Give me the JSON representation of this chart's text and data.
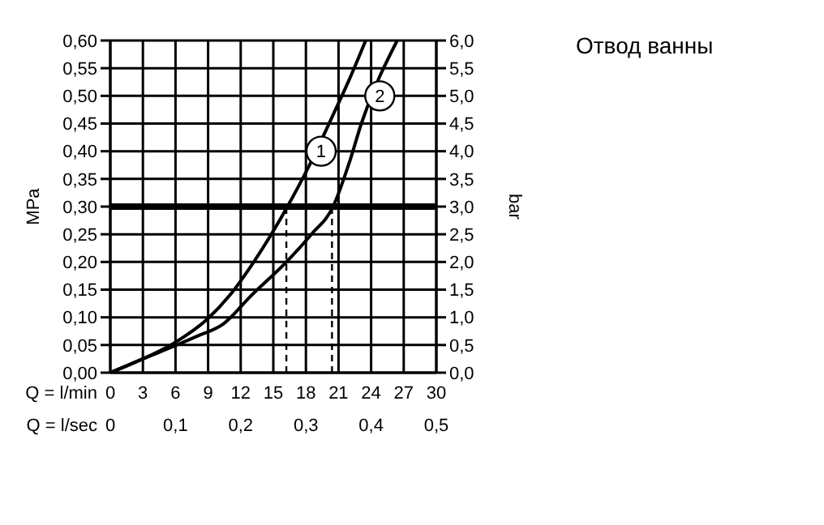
{
  "chart_data": {
    "type": "line",
    "title": "Отвод ванны",
    "xlabel": "Q = l/min",
    "x2label": "Q = l/sec",
    "ylabel": "MPa",
    "y2label": "bar",
    "series": [
      {
        "color": "#000000",
        "x": [
          0,
          3,
          6,
          9,
          11,
          13.2,
          16.3,
          18.2,
          20.6,
          22,
          23.5
        ],
        "values": [
          0,
          0.025,
          0.055,
          0.098,
          0.14,
          0.2,
          0.3,
          0.37,
          0.47,
          0.53,
          0.6
        ]
      },
      {
        "color": "#000000",
        "x": [
          0,
          3,
          6,
          8,
          10.4,
          13,
          16.2,
          18.5,
          20.5,
          22,
          23.1,
          26.4
        ],
        "values": [
          0,
          0.025,
          0.049,
          0.066,
          0.088,
          0.14,
          0.2,
          0.25,
          0.3,
          0.38,
          0.45,
          0.6
        ]
      }
    ],
    "xlim": [
      0,
      30
    ],
    "xticks": [
      0,
      3,
      6,
      9,
      12,
      15,
      18,
      21,
      24,
      27,
      30
    ],
    "x2lim": [
      0,
      0.5
    ],
    "x2ticks": [
      0,
      {
        "value": 0.1,
        "label": "0,1"
      },
      {
        "value": 0.2,
        "label": "0,2"
      },
      {
        "value": 0.3,
        "label": "0,3"
      },
      {
        "value": 0.4,
        "label": "0,4"
      },
      {
        "value": 0.5,
        "label": "0,5"
      }
    ],
    "ylim": [
      0,
      0.6
    ],
    "yticks": [
      {
        "value": 0,
        "label": "0,00"
      },
      {
        "value": 0.05,
        "label": "0,05"
      },
      {
        "value": 0.1,
        "label": "0,10"
      },
      {
        "value": 0.15,
        "label": "0,15"
      },
      {
        "value": 0.2,
        "label": "0,20"
      },
      {
        "value": 0.25,
        "label": "0,25"
      },
      {
        "value": 0.3,
        "label": "0,30"
      },
      {
        "value": 0.35,
        "label": "0,35"
      },
      {
        "value": 0.4,
        "label": "0,40"
      },
      {
        "value": 0.45,
        "label": "0,45"
      },
      {
        "value": 0.5,
        "label": "0,50"
      },
      {
        "value": 0.55,
        "label": "0,55"
      },
      {
        "value": 0.6,
        "label": "0,60"
      }
    ],
    "y2lim": [
      0,
      6
    ],
    "y2ticks": [
      {
        "value": 0,
        "label": "0,0"
      },
      {
        "value": 0.5,
        "label": "0,5"
      },
      {
        "value": 1,
        "label": "1,0"
      },
      {
        "value": 1.5,
        "label": "1,5"
      },
      {
        "value": 2,
        "label": "2,0"
      },
      {
        "value": 2.5,
        "label": "2,5"
      },
      {
        "value": 3,
        "label": "3,0"
      },
      {
        "value": 3.5,
        "label": "3,5"
      },
      {
        "value": 4,
        "label": "4,0"
      },
      {
        "value": 4.5,
        "label": "4,5"
      },
      {
        "value": 5,
        "label": "5,0"
      },
      {
        "value": 5.5,
        "label": "5,5"
      },
      {
        "value": 6,
        "label": "6,0"
      }
    ],
    "ref_lines": [
      {
        "axis": "y",
        "value": 0.3,
        "color": "#000000",
        "line_style": "solid"
      },
      {
        "axis": "x",
        "value": 16.2,
        "color": "#000000",
        "line_style": "dashed"
      },
      {
        "axis": "x",
        "value": 20.4,
        "color": "#000000",
        "line_style": "dashed"
      }
    ],
    "annotations": [
      {
        "text": "1",
        "x": 19.4,
        "y": 0.4
      },
      {
        "text": "2",
        "x": 24.8,
        "y": 0.5
      }
    ],
    "grid": true,
    "marker": "none",
    "line_style": "solid"
  }
}
